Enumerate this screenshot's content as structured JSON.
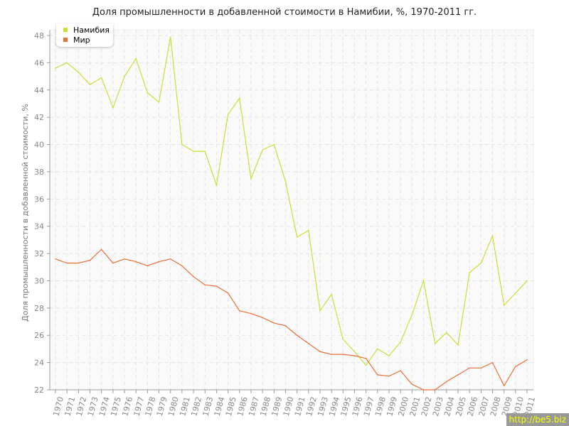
{
  "chart_data": {
    "type": "line",
    "title": "Доля промышленности в добавленной стоимости в Намибии, %, 1970-2011 гг.",
    "xlabel": "",
    "ylabel": "Доля промышленности в добавленной стоимости, %",
    "ylim": [
      22,
      48
    ],
    "yticks": [
      "22",
      "24",
      "26",
      "28",
      "30",
      "32",
      "34",
      "36",
      "38",
      "40",
      "42",
      "44",
      "46",
      "48"
    ],
    "grid": true,
    "legend_position": "top-left",
    "categories": [
      "1970",
      "1971",
      "1972",
      "1973",
      "1974",
      "1975",
      "1976",
      "1977",
      "1978",
      "1979",
      "1980",
      "1981",
      "1982",
      "1983",
      "1984",
      "1985",
      "1986",
      "1987",
      "1988",
      "1989",
      "1990",
      "1991",
      "1992",
      "1993",
      "1994",
      "1995",
      "1996",
      "1997",
      "1998",
      "1999",
      "2000",
      "2001",
      "2002",
      "2003",
      "2004",
      "2005",
      "2006",
      "2007",
      "2008",
      "2009",
      "2010",
      "2011"
    ],
    "series": [
      {
        "name": "Намибия",
        "color": "#c5e03a",
        "values": [
          45.6,
          46.0,
          45.3,
          44.4,
          44.9,
          42.7,
          45.0,
          46.3,
          43.8,
          43.1,
          47.9,
          40.0,
          39.5,
          39.5,
          37.0,
          42.2,
          43.4,
          37.5,
          39.6,
          40.0,
          37.3,
          33.2,
          33.7,
          27.8,
          29.0,
          25.7,
          24.8,
          23.8,
          25.0,
          24.5,
          25.5,
          27.5,
          30.0,
          25.4,
          26.2,
          25.3,
          30.6,
          31.3,
          33.3,
          28.2,
          29.1,
          30.0
        ]
      },
      {
        "name": "Мир",
        "color": "#e8703a",
        "values": [
          31.6,
          31.3,
          31.3,
          31.5,
          32.3,
          31.3,
          31.6,
          31.4,
          31.1,
          31.4,
          31.6,
          31.1,
          30.3,
          29.7,
          29.6,
          29.1,
          27.8,
          27.6,
          27.3,
          26.9,
          26.7,
          26.0,
          25.4,
          24.8,
          24.6,
          24.6,
          24.5,
          24.3,
          23.1,
          23.0,
          23.4,
          22.4,
          22.0,
          22.0,
          22.6,
          23.1,
          23.6,
          23.6,
          24.0,
          22.3,
          23.7,
          24.2
        ]
      }
    ]
  },
  "watermark": "http://be5.biz"
}
